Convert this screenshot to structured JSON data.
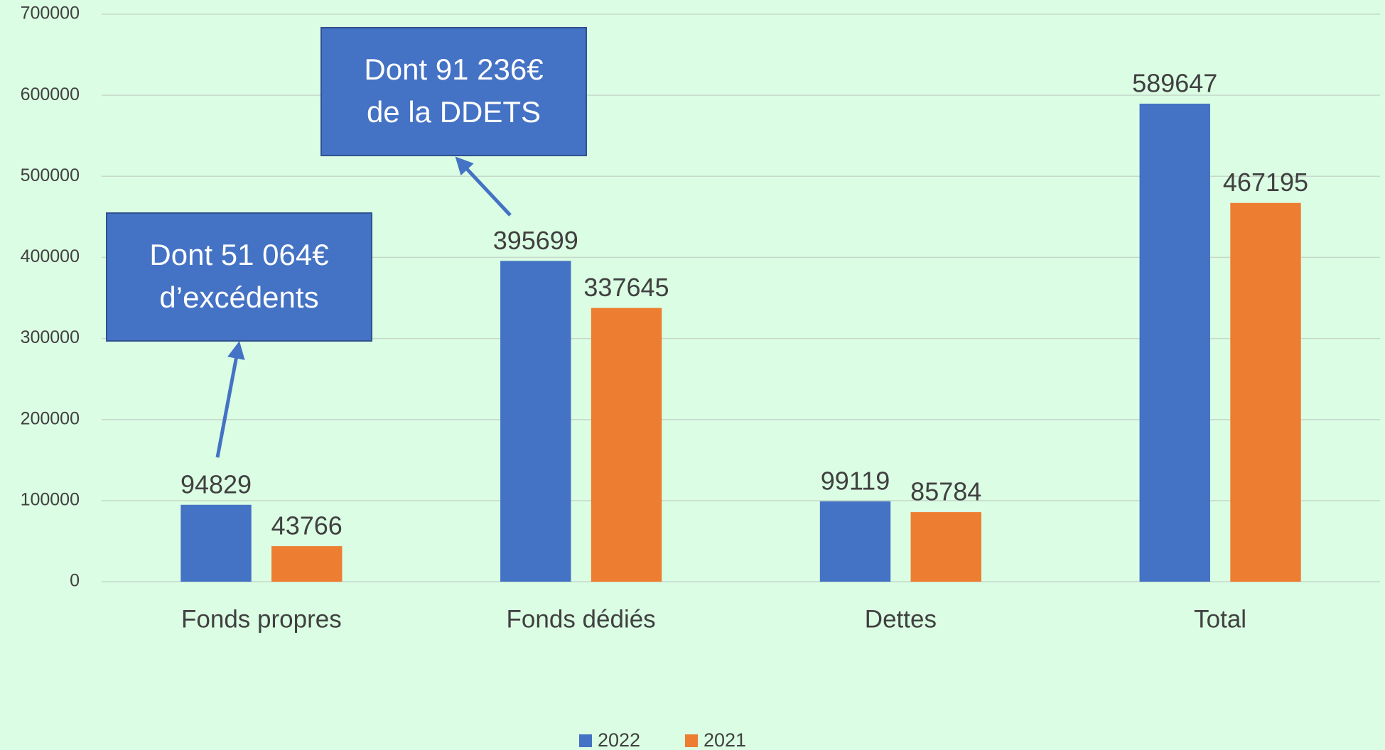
{
  "chart_data": {
    "type": "bar",
    "categories": [
      "Fonds propres",
      "Fonds dédiés",
      "Dettes",
      "Total"
    ],
    "series": [
      {
        "name": "2022",
        "color": "#4472c4",
        "values": [
          94829,
          395699,
          99119,
          589647
        ]
      },
      {
        "name": "2021",
        "color": "#ed7d31",
        "values": [
          43766,
          337645,
          85784,
          467195
        ]
      }
    ],
    "ylim": [
      0,
      700000
    ],
    "yticks": [
      0,
      100000,
      200000,
      300000,
      400000,
      500000,
      600000,
      700000
    ],
    "grid": true,
    "legend": "bottom",
    "annotations": [
      {
        "lines": [
          "Dont 51 064€",
          "d’excédents"
        ]
      },
      {
        "lines": [
          "Dont 91 236€",
          "de la DDETS"
        ]
      }
    ]
  }
}
